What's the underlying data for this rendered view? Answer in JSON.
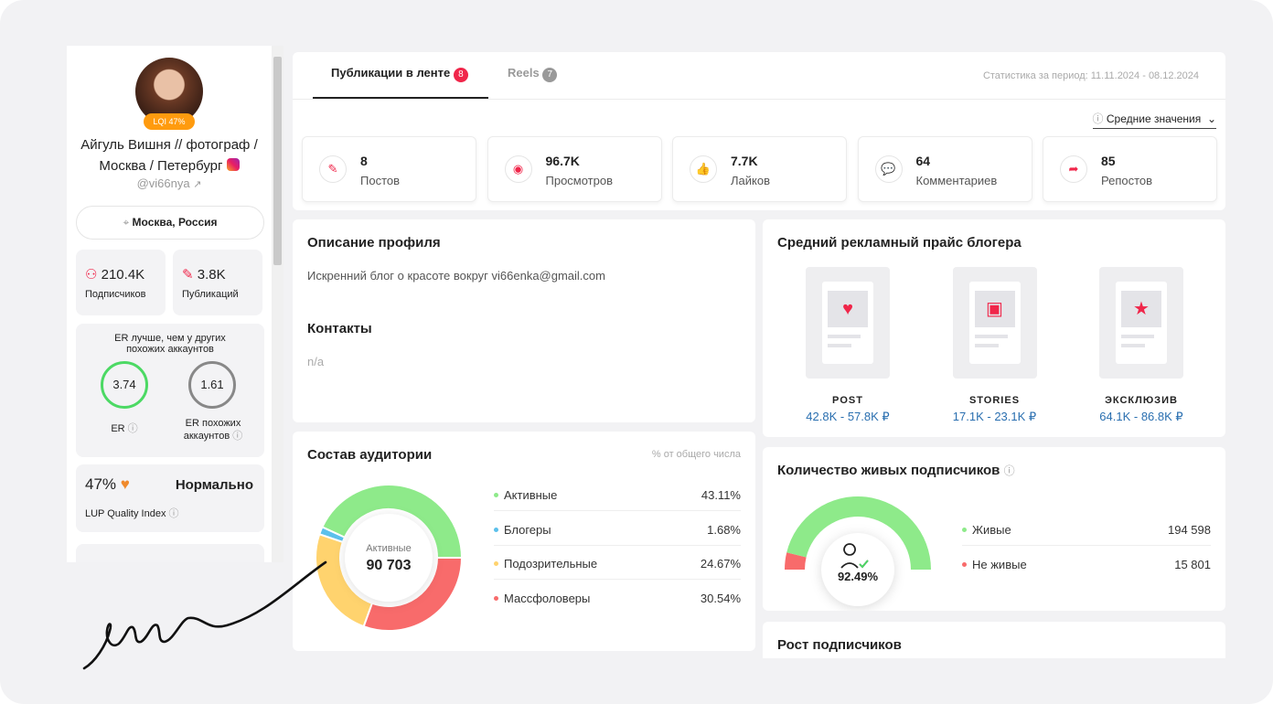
{
  "sidebar": {
    "lqi_badge": "LQI 47%",
    "name": "Айгуль Вишня // фотограф / Москва / Петербург",
    "handle": "@vi66nya",
    "location": "Москва, Россия",
    "followers": {
      "value": "210.4K",
      "label": "Подписчиков"
    },
    "posts": {
      "value": "3.8K",
      "label": "Публикаций"
    },
    "er": {
      "title": "ER лучше, чем у других похожих аккаунтов",
      "own": 3.74,
      "own_label": "ER",
      "similar": 1.61,
      "similar_label": "ER похожих аккаунтов"
    },
    "lup": {
      "value": "47%",
      "status": "Нормально",
      "label": "LUP Quality Index"
    }
  },
  "tabs": [
    {
      "label": "Публикации в ленте",
      "badge": 8
    },
    {
      "label": "Reels",
      "badge": 7
    }
  ],
  "period": "Статистика за период: 11.11.2024 - 08.12.2024",
  "mode": "Средние значения",
  "stats": [
    {
      "value": 8,
      "label": "Постов"
    },
    {
      "value": "96.7K",
      "label": "Просмотров"
    },
    {
      "value": "7.7K",
      "label": "Лайков"
    },
    {
      "value": 64,
      "label": "Комментариев"
    },
    {
      "value": 85,
      "label": "Репостов"
    }
  ],
  "profile": {
    "title": "Описание профиля",
    "description": "Искренний блог о красоте вокруг vi66enka@gmail.com",
    "contacts_title": "Контакты",
    "contacts": "n/a"
  },
  "prices": {
    "title": "Средний рекламный прайс блогера",
    "items": [
      {
        "label": "POST",
        "range": "42.8K - 57.8K ₽"
      },
      {
        "label": "STORIES",
        "range": "17.1K - 23.1K ₽"
      },
      {
        "label": "ЭКСКЛЮЗИВ",
        "range": "64.1K - 86.8K ₽"
      }
    ]
  },
  "audience": {
    "title": "Состав аудитории",
    "note": "% от общего числа",
    "center_label": "Активные",
    "center_value": "90 703",
    "items": [
      {
        "label": "Активные",
        "value": 43.11,
        "value_label": "43.11%",
        "color": "#8eea8a"
      },
      {
        "label": "Блогеры",
        "value": 1.68,
        "value_label": "1.68%",
        "color": "#5bc0eb"
      },
      {
        "label": "Подозрительные",
        "value": 24.67,
        "value_label": "24.67%",
        "color": "#ffd36e"
      },
      {
        "label": "Массфоловеры",
        "value": 30.54,
        "value_label": "30.54%",
        "color": "#f86b6b"
      }
    ]
  },
  "live": {
    "title": "Количество живых подписчиков",
    "percent": "92.49%",
    "items": [
      {
        "label": "Живые",
        "value": 194598,
        "value_label": "194 598",
        "color": "#8eea8a"
      },
      {
        "label": "Не живые",
        "value": 15801,
        "value_label": "15 801",
        "color": "#f86b6b"
      }
    ]
  },
  "growth": {
    "title": "Рост подписчиков"
  }
}
